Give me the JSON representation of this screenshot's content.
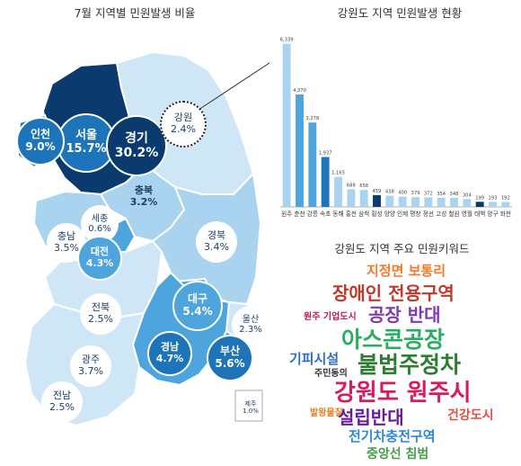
{
  "left_title": "7월 지역별 민원발생 비율",
  "right_title": "강원도 지역 민원발생 현황",
  "keyword_title": "강원도 지역 주요 민원키워드",
  "colors": {
    "darkest": "#0b3a6e",
    "dark": "#1e74b8",
    "medium": "#4ea5dd",
    "light": "#a9d3ef",
    "pale": "#cfe6f7",
    "bubble_white": "#ffffff",
    "text_dark": "#1f3f6a"
  },
  "regions": [
    {
      "name": "서울",
      "pct": "15.7%",
      "tier": "darkest"
    },
    {
      "name": "경기",
      "pct": "30.2%",
      "tier": "darkest"
    },
    {
      "name": "인천",
      "pct": "9.0%",
      "tier": "dark"
    },
    {
      "name": "강원",
      "pct": "2.4%",
      "tier": "pale"
    },
    {
      "name": "충북",
      "pct": "3.2%",
      "tier": "light"
    },
    {
      "name": "세종",
      "pct": "0.6%",
      "tier": "pale"
    },
    {
      "name": "충남",
      "pct": "3.5%",
      "tier": "light"
    },
    {
      "name": "대전",
      "pct": "4.3%",
      "tier": "medium"
    },
    {
      "name": "경북",
      "pct": "3.4%",
      "tier": "light"
    },
    {
      "name": "대구",
      "pct": "5.4%",
      "tier": "medium"
    },
    {
      "name": "전북",
      "pct": "2.5%",
      "tier": "pale"
    },
    {
      "name": "울산",
      "pct": "2.3%",
      "tier": "pale"
    },
    {
      "name": "경남",
      "pct": "4.7%",
      "tier": "medium"
    },
    {
      "name": "부산",
      "pct": "5.6%",
      "tier": "medium"
    },
    {
      "name": "광주",
      "pct": "3.7%",
      "tier": "light"
    },
    {
      "name": "전남",
      "pct": "2.5%",
      "tier": "pale"
    },
    {
      "name": "제주",
      "pct": "1.0%",
      "tier": "pale"
    }
  ],
  "chart_data": {
    "type": "bar",
    "title": "강원도 지역 민원발생 현황",
    "categories": [
      "원주",
      "춘천",
      "강릉",
      "속초",
      "동해",
      "홍천",
      "삼척",
      "횡성",
      "양양",
      "인제",
      "평창",
      "정선",
      "고성",
      "철원",
      "영월",
      "태백",
      "양구",
      "화천"
    ],
    "values": [
      6339,
      4370,
      3278,
      1937,
      1165,
      688,
      658,
      459,
      438,
      400,
      379,
      372,
      354,
      348,
      304,
      199,
      193,
      192
    ],
    "value_labels": [
      "6,339",
      "4,370",
      "3,278",
      "1,937",
      "1,165",
      "688",
      "658",
      "459",
      "438",
      "400",
      "379",
      "372",
      "354",
      "348",
      "304",
      "199",
      "193",
      "192"
    ],
    "bar_colors": [
      "#a9d3ef",
      "#4ea5dd",
      "#4ea5dd",
      "#1e74b8",
      "#a9d3ef",
      "#a9d3ef",
      "#a9d3ef",
      "#0b3a6e",
      "#a9d3ef",
      "#a9d3ef",
      "#a9d3ef",
      "#a9d3ef",
      "#a9d3ef",
      "#a9d3ef",
      "#a9d3ef",
      "#0b3a6e",
      "#a9d3ef",
      "#a9d3ef"
    ],
    "ylim": [
      0,
      6500
    ]
  },
  "keywords": [
    {
      "text": "지정면 보통리",
      "color": "#f07a2a"
    },
    {
      "text": "장애인 전용구역",
      "color": "#c0392b"
    },
    {
      "text": "원주 기업도시",
      "color": "#c2185b"
    },
    {
      "text": "공장 반대",
      "color": "#7e3ab5"
    },
    {
      "text": "아스콘공장",
      "color": "#27ae60"
    },
    {
      "text": "기피시설",
      "color": "#2e6fc7"
    },
    {
      "text": "주민동의",
      "color": "#333333"
    },
    {
      "text": "불법주정차",
      "color": "#2e7d32"
    },
    {
      "text": "강원도 원주시",
      "color": "#d81b60"
    },
    {
      "text": "발왕물질",
      "color": "#e67e22"
    },
    {
      "text": "설립반대",
      "color": "#6a1b9a"
    },
    {
      "text": "건강도시",
      "color": "#e74c3c"
    },
    {
      "text": "전기차충전구역",
      "color": "#2e86de"
    },
    {
      "text": "중앙선 침범",
      "color": "#43a047"
    }
  ]
}
